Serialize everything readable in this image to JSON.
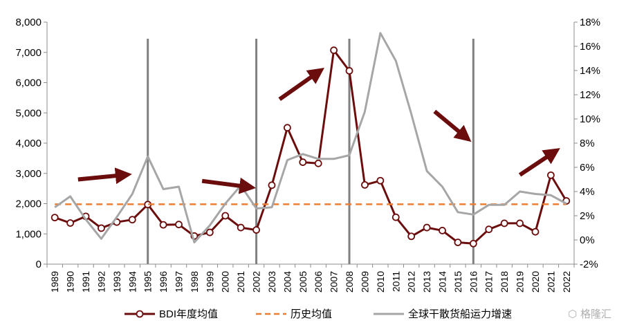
{
  "chart_data": {
    "type": "line",
    "categories": [
      "1989",
      "1990",
      "1991",
      "1992",
      "1993",
      "1994",
      "1995",
      "1996",
      "1997",
      "1998",
      "1999",
      "2000",
      "2001",
      "2002",
      "2003",
      "2004",
      "2005",
      "2006",
      "2007",
      "2008",
      "2009",
      "2010",
      "2011",
      "2012",
      "2013",
      "2014",
      "2015",
      "2016",
      "2017",
      "2018",
      "2019",
      "2020",
      "2021",
      "2022"
    ],
    "series": [
      {
        "name": "BDI年度均值",
        "axis": "left",
        "color": "#6b0d0d",
        "marker": "circle",
        "values": [
          1540,
          1360,
          1580,
          1190,
          1390,
          1470,
          1970,
          1300,
          1310,
          930,
          1050,
          1600,
          1210,
          1130,
          2610,
          4510,
          3370,
          3330,
          7070,
          6390,
          2620,
          2760,
          1550,
          920,
          1210,
          1110,
          720,
          680,
          1150,
          1350,
          1350,
          1070,
          2940,
          2090
        ]
      },
      {
        "name": "历史均值",
        "axis": "left",
        "color": "#ed7d31",
        "dash": true,
        "values": [
          1980,
          1980,
          1980,
          1980,
          1980,
          1980,
          1980,
          1980,
          1980,
          1980,
          1980,
          1980,
          1980,
          1980,
          1980,
          1980,
          1980,
          1980,
          1980,
          1980,
          1980,
          1980,
          1980,
          1980,
          1980,
          1980,
          1980,
          1980,
          1980,
          1980,
          1980,
          1980,
          1980,
          1980
        ]
      },
      {
        "name": "全球干散货船运力增速",
        "axis": "right",
        "color": "#a6a6a6",
        "unit": "%",
        "values": [
          2.7,
          3.6,
          1.7,
          0.1,
          1.9,
          3.8,
          6.9,
          4.2,
          4.4,
          -0.2,
          1.2,
          3.0,
          4.5,
          2.6,
          2.7,
          6.6,
          7.1,
          6.7,
          6.7,
          7.0,
          10.6,
          17.1,
          14.8,
          10.4,
          5.7,
          4.4,
          2.3,
          2.1,
          2.9,
          2.9,
          4.0,
          3.8,
          3.7,
          3.0
        ]
      }
    ],
    "y_left": {
      "min": 0,
      "max": 8000,
      "step": 1000,
      "ticks": [
        "0",
        "1,000",
        "2,000",
        "3,000",
        "4,000",
        "5,000",
        "6,000",
        "7,000",
        "8,000"
      ]
    },
    "y_right": {
      "min": -2,
      "max": 18,
      "step": 2,
      "ticks": [
        "-2%",
        "0%",
        "2%",
        "4%",
        "6%",
        "8%",
        "10%",
        "12%",
        "14%",
        "16%",
        "18%"
      ]
    },
    "vertical_markers": [
      "1995",
      "2002",
      "2008",
      "2016"
    ],
    "trend_arrows": [
      {
        "from": [
          "1990.5",
          2800
        ],
        "to": [
          "1993.5",
          2950
        ],
        "direction": "flat"
      },
      {
        "from": [
          "1998.5",
          2750
        ],
        "to": [
          "2001.5",
          2550
        ],
        "direction": "flat-down"
      },
      {
        "from": [
          "2003.5",
          5450
        ],
        "to": [
          "2006.0",
          6350
        ],
        "direction": "up"
      },
      {
        "from": [
          "2013.5",
          5050
        ],
        "to": [
          "2015.5",
          4200
        ],
        "direction": "down"
      },
      {
        "from": [
          "2019.0",
          2950
        ],
        "to": [
          "2021.2",
          3700
        ],
        "direction": "up"
      }
    ],
    "legend": {
      "position": "bottom",
      "entries": [
        "BDI年度均值",
        "历史均值",
        "全球干散货船运力增速"
      ]
    },
    "title": "",
    "xlabel": "",
    "ylabel": "",
    "grid": false
  },
  "watermark": {
    "text": "格隆汇",
    "icon": "logo-badge-icon"
  }
}
